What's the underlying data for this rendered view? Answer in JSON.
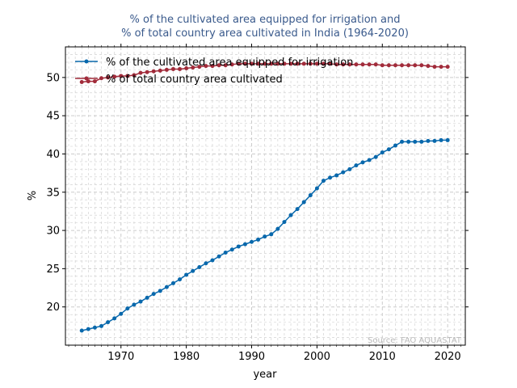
{
  "colors": {
    "irrigation": "#0868ac",
    "cultivated": "#a12b3a",
    "title": "#3a5a8c",
    "source": "#bbbbbb",
    "grid": "#cccccc"
  },
  "chart_data": {
    "type": "line",
    "title_line1": "% of the cultivated area equipped for irrigation and",
    "title_line2": "% of total country area cultivated in India (1964-2020)",
    "xlabel": "year",
    "ylabel": "%",
    "xlim": [
      1961.5,
      2022.7
    ],
    "ylim": [
      15.0,
      54.0
    ],
    "xticks": [
      1970,
      1980,
      1990,
      2000,
      2010,
      2020
    ],
    "yticks": [
      20,
      25,
      30,
      35,
      40,
      45,
      50
    ],
    "grid": true,
    "legend_position": "top-left",
    "source": "Source: FAO AQUASTAT",
    "x": [
      1964,
      1965,
      1966,
      1967,
      1968,
      1969,
      1970,
      1971,
      1972,
      1973,
      1974,
      1975,
      1976,
      1977,
      1978,
      1979,
      1980,
      1981,
      1982,
      1983,
      1984,
      1985,
      1986,
      1987,
      1988,
      1989,
      1990,
      1991,
      1992,
      1993,
      1994,
      1995,
      1996,
      1997,
      1998,
      1999,
      2000,
      2001,
      2002,
      2003,
      2004,
      2005,
      2006,
      2007,
      2008,
      2009,
      2010,
      2011,
      2012,
      2013,
      2014,
      2015,
      2016,
      2017,
      2018,
      2019,
      2020
    ],
    "series": [
      {
        "name": "% of the cultivated area equipped for irrigation",
        "values": [
          16.9,
          17.1,
          17.3,
          17.5,
          18.0,
          18.5,
          19.1,
          19.8,
          20.3,
          20.7,
          21.2,
          21.7,
          22.1,
          22.6,
          23.1,
          23.6,
          24.2,
          24.7,
          25.2,
          25.7,
          26.1,
          26.6,
          27.1,
          27.5,
          27.9,
          28.2,
          28.5,
          28.8,
          29.2,
          29.5,
          30.2,
          31.1,
          32.0,
          32.8,
          33.7,
          34.6,
          35.5,
          36.5,
          36.9,
          37.2,
          37.6,
          38.0,
          38.5,
          38.9,
          39.2,
          39.6,
          40.2,
          40.6,
          41.1,
          41.6,
          41.6,
          41.6,
          41.6,
          41.7,
          41.7,
          41.8,
          41.8
        ]
      },
      {
        "name": "% of total country area cultivated",
        "values": [
          49.4,
          49.5,
          49.5,
          49.9,
          50.0,
          50.1,
          50.2,
          50.2,
          50.3,
          50.6,
          50.7,
          50.8,
          50.9,
          51.0,
          51.1,
          51.1,
          51.2,
          51.3,
          51.4,
          51.5,
          51.5,
          51.6,
          51.6,
          51.7,
          51.8,
          51.8,
          51.8,
          51.8,
          51.8,
          51.8,
          51.8,
          51.8,
          51.8,
          51.8,
          51.8,
          51.8,
          51.8,
          51.8,
          51.8,
          51.7,
          51.7,
          51.7,
          51.7,
          51.7,
          51.7,
          51.7,
          51.6,
          51.6,
          51.6,
          51.6,
          51.6,
          51.6,
          51.6,
          51.5,
          51.4,
          51.4,
          51.4
        ]
      }
    ]
  }
}
